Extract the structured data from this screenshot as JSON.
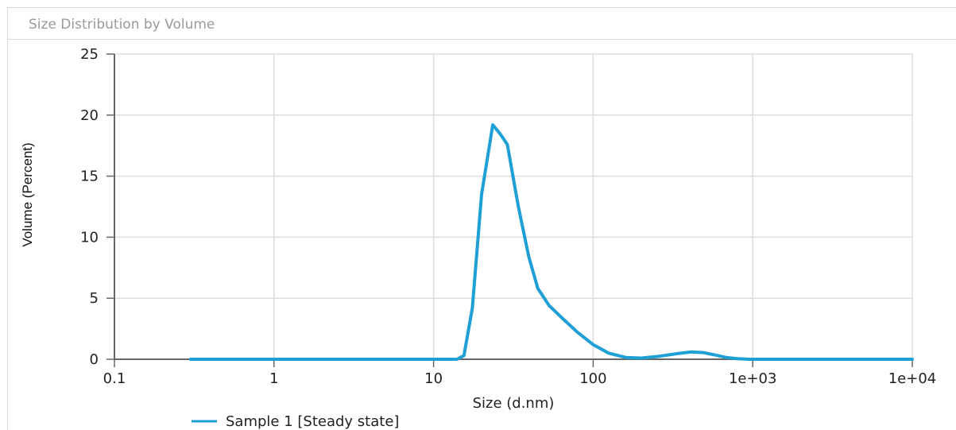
{
  "panel": {
    "title": "Size Distribution by Volume"
  },
  "chart_data": {
    "type": "line",
    "xscale": "log",
    "xlabel": "Size (d.nm)",
    "ylabel": "Volume (Percent)",
    "xlim": [
      0.1,
      10000
    ],
    "ylim": [
      0,
      25
    ],
    "x_ticks": [
      0.1,
      1,
      10,
      100,
      1000,
      10000
    ],
    "x_tick_labels": [
      "0.1",
      "1",
      "10",
      "100",
      "1e+03",
      "1e+04"
    ],
    "y_ticks": [
      0,
      5,
      10,
      15,
      20,
      25
    ],
    "y_tick_labels": [
      "0",
      "5",
      "10",
      "15",
      "20",
      "25"
    ],
    "grid": true,
    "legend_position": "bottom-left",
    "series": [
      {
        "name": "Sample 1 [Steady state]",
        "color": "#1e9fd6",
        "x": [
          0.3,
          5,
          14,
          15.5,
          17.5,
          20,
          23.5,
          26,
          29,
          34,
          39.5,
          45,
          53,
          66,
          80,
          100,
          125,
          160,
          200,
          260,
          330,
          410,
          490,
          580,
          680,
          800,
          950,
          1300,
          10000
        ],
        "y": [
          0,
          0,
          0,
          0.3,
          4.2,
          13.5,
          19.2,
          18.5,
          17.6,
          12.5,
          8.4,
          5.8,
          4.4,
          3.2,
          2.2,
          1.2,
          0.5,
          0.15,
          0.1,
          0.25,
          0.45,
          0.6,
          0.55,
          0.35,
          0.15,
          0.05,
          0,
          0,
          0
        ]
      }
    ]
  }
}
